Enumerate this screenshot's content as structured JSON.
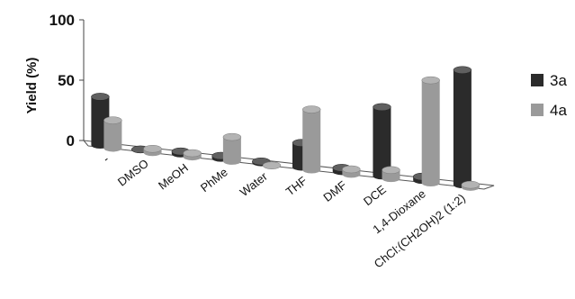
{
  "chart_data": {
    "type": "bar",
    "ylabel": "Yield (%)",
    "xlabel": "",
    "ylim": [
      0,
      100
    ],
    "yticks": [
      0,
      50,
      100
    ],
    "categories": [
      "-",
      "DMSO",
      "MeOH",
      "PhMe",
      "Water",
      "THF",
      "DMF",
      "DCE",
      "1,4-Dioxane",
      "ChCl:(CH2OH)2 (1:2)"
    ],
    "series": [
      {
        "name": "3a",
        "color": "#2b2b2b",
        "values": [
          40,
          0,
          2,
          2,
          1,
          20,
          3,
          57,
          3,
          95
        ]
      },
      {
        "name": "4a",
        "color": "#9a9a9a",
        "values": [
          23,
          3,
          3,
          20,
          0,
          50,
          4,
          7,
          85,
          2
        ]
      }
    ],
    "legend_position": "right",
    "grid": false
  }
}
